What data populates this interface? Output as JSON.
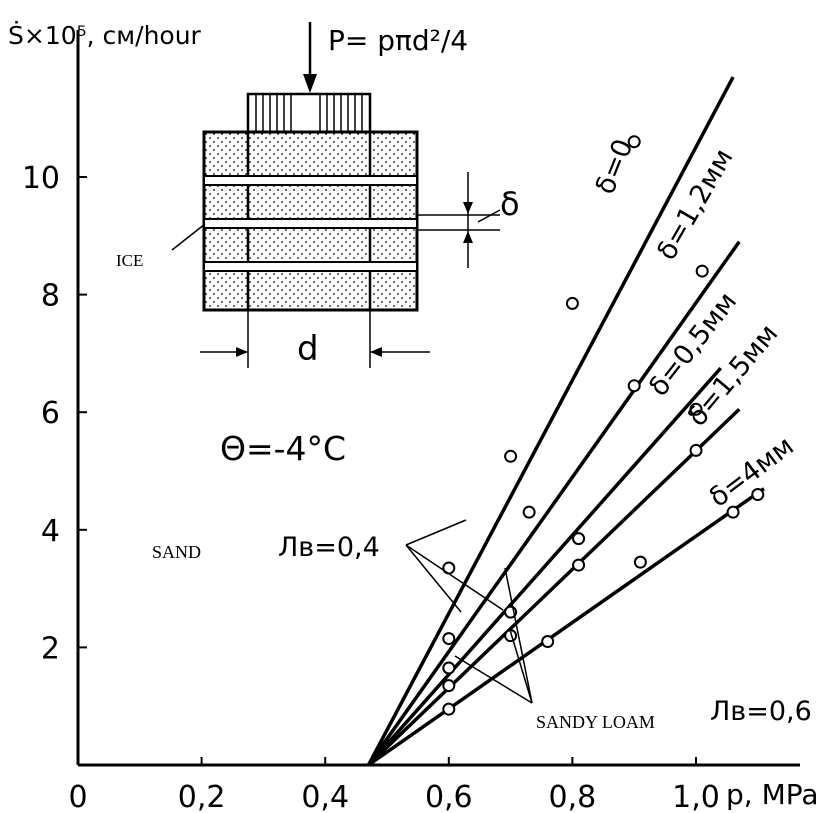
{
  "chart_data": {
    "type": "line",
    "title": "",
    "ylabel": "Ṡ×10⁵, см/hour",
    "xlabel": "p, MPa",
    "xlim": [
      0,
      1.1
    ],
    "ylim": [
      0,
      11.5
    ],
    "x_ticks": [
      "0",
      "0,2",
      "0,4",
      "0,6",
      "0,8",
      "1,0"
    ],
    "x_tick_values": [
      0,
      0.2,
      0.4,
      0.6,
      0.8,
      1.0
    ],
    "y_ticks": [
      "2",
      "4",
      "6",
      "8",
      "10"
    ],
    "y_tick_values": [
      2,
      4,
      6,
      8,
      10
    ],
    "grid": false,
    "series": [
      {
        "name": "δ=0",
        "line": [
          [
            0.47,
            0
          ],
          [
            1.06,
            11.7
          ]
        ],
        "points": [
          [
            0.6,
            3.35
          ],
          [
            0.7,
            5.25
          ],
          [
            0.8,
            7.85
          ],
          [
            0.9,
            10.6
          ]
        ]
      },
      {
        "name": "δ=1,2мм",
        "line": [
          [
            0.47,
            0
          ],
          [
            1.07,
            8.9
          ]
        ],
        "points": [
          [
            0.6,
            2.15
          ],
          [
            0.73,
            4.3
          ],
          [
            0.9,
            6.45
          ],
          [
            1.01,
            8.4
          ]
        ]
      },
      {
        "name": "δ=0,5мм",
        "line": [
          [
            0.47,
            0
          ],
          [
            1.04,
            6.75
          ]
        ],
        "points": [
          [
            0.6,
            1.65
          ],
          [
            0.7,
            2.6
          ],
          [
            0.81,
            3.85
          ],
          [
            1.0,
            6.05
          ]
        ]
      },
      {
        "name": "δ=1,5мм",
        "line": [
          [
            0.47,
            0
          ],
          [
            1.07,
            6.05
          ]
        ],
        "points": [
          [
            0.6,
            1.35
          ],
          [
            0.7,
            2.2
          ],
          [
            0.81,
            3.4
          ],
          [
            1.0,
            5.35
          ]
        ]
      },
      {
        "name": "δ=4мм",
        "line": [
          [
            0.47,
            0
          ],
          [
            1.11,
            4.7
          ]
        ],
        "points": [
          [
            0.6,
            0.95
          ],
          [
            0.76,
            2.1
          ],
          [
            0.91,
            3.45
          ],
          [
            1.06,
            4.3
          ],
          [
            1.1,
            4.6
          ]
        ]
      }
    ],
    "annotations": {
      "formula": "P= pπd²/4",
      "temperature": "Θ=-4°C",
      "ice_label": "ICE",
      "d_label": "d",
      "delta_label": "δ",
      "sand_label": "SAND",
      "lv_sand": "Лв=0,4",
      "sandy_loam_label": "SANDY LOAM",
      "lv_loam": "Лв=0,6"
    }
  }
}
